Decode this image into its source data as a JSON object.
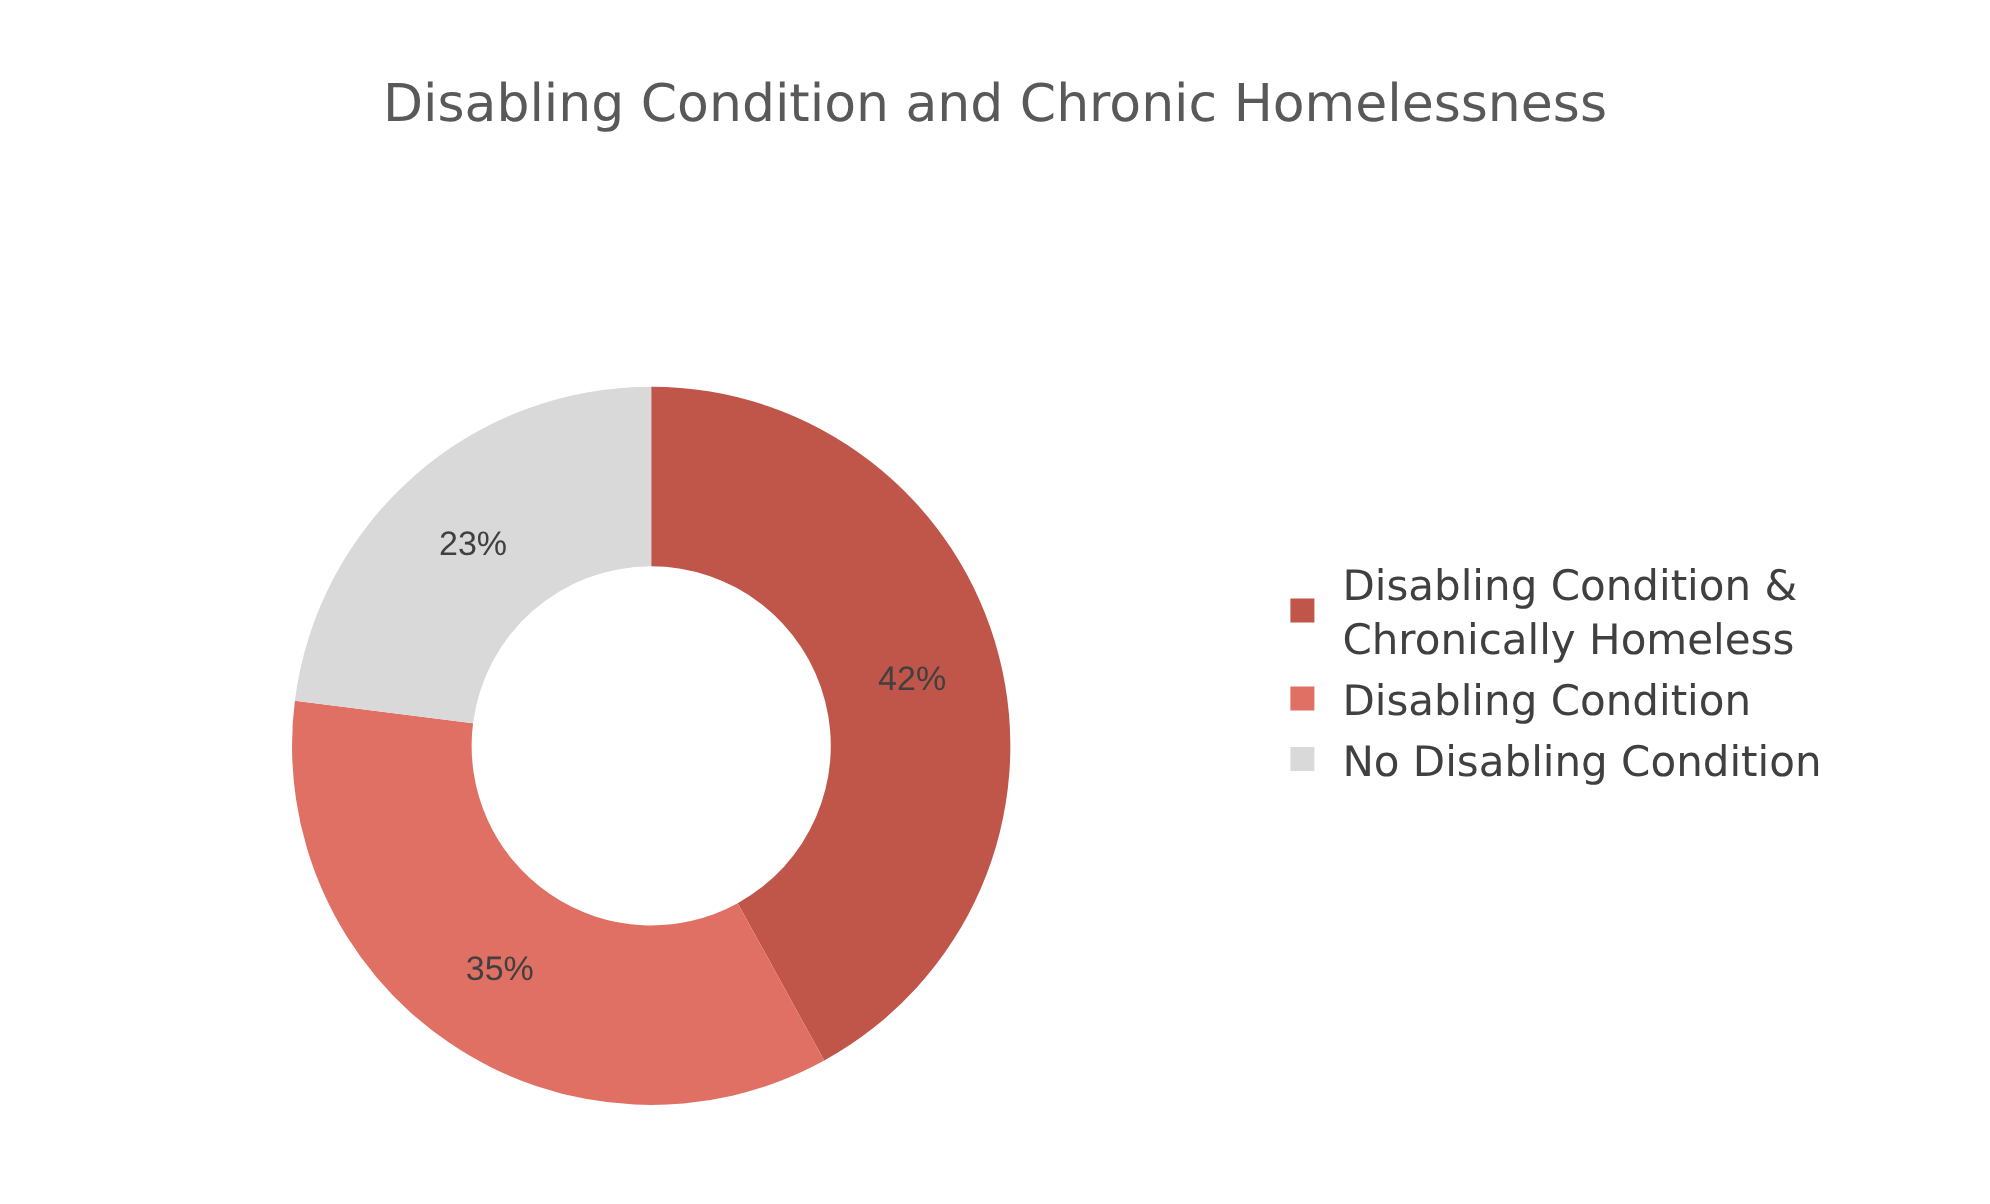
{
  "chart_data": {
    "type": "donut",
    "title": "Disabling Condition and Chronic Homelessness",
    "categories": [
      "Disabling Condition & Chronically Homeless",
      "Disabling Condition",
      "No Disabling Condition"
    ],
    "values": [
      42,
      35,
      23
    ],
    "colors": [
      "#c0564a",
      "#e07063",
      "#d9d9d9"
    ],
    "value_labels": [
      "42%",
      "35%",
      "23%"
    ],
    "legend": "right"
  }
}
